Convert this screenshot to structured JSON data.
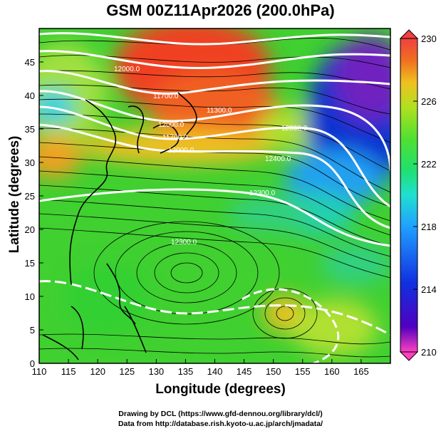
{
  "title": "GSM 00Z11Apr2026 (200.0hPa)",
  "xlabel": "Longitude (degrees)",
  "ylabel": "Latitude (degrees)",
  "credits": [
    "Drawing by DCL (https://www.gfd-dennou.org/library/dcl/)",
    "Data from http://database.rish.kyoto-u.ac.jp/arch/jmadata/"
  ],
  "map": {
    "lon_range": [
      110,
      170
    ],
    "lat_range": [
      0,
      50
    ],
    "x_ticks": [
      "110",
      "115",
      "120",
      "125",
      "130",
      "135",
      "140",
      "145",
      "150",
      "155",
      "160",
      "165"
    ],
    "y_ticks": [
      "0",
      "5",
      "10",
      "15",
      "20",
      "25",
      "30",
      "35",
      "40",
      "45"
    ],
    "colorbar": {
      "ticks": [
        "230",
        "226",
        "222",
        "218",
        "214",
        "210"
      ],
      "range": [
        210,
        230
      ],
      "colors": [
        "#ff40c0",
        "#5000c0",
        "#1030e0",
        "#20a0ff",
        "#20e0e0",
        "#20e080",
        "#40e030",
        "#b0e020",
        "#f0c020",
        "#f08020",
        "#f04020",
        "#f04040"
      ]
    },
    "contour_labels": [
      "12000.0",
      "11700.0",
      "11300.0",
      "12000.0",
      "11700.0",
      "12000.0",
      "12000.0",
      "12400.0",
      "12300.0",
      "12300.0"
    ],
    "colors": {
      "warm": "#f04020",
      "orange": "#f0a020",
      "green": "#40d030",
      "cool": "#20c0f0",
      "blue": "#1030d0",
      "purple": "#7020c0",
      "contour": "#ffffff",
      "coast": "#000000"
    }
  }
}
